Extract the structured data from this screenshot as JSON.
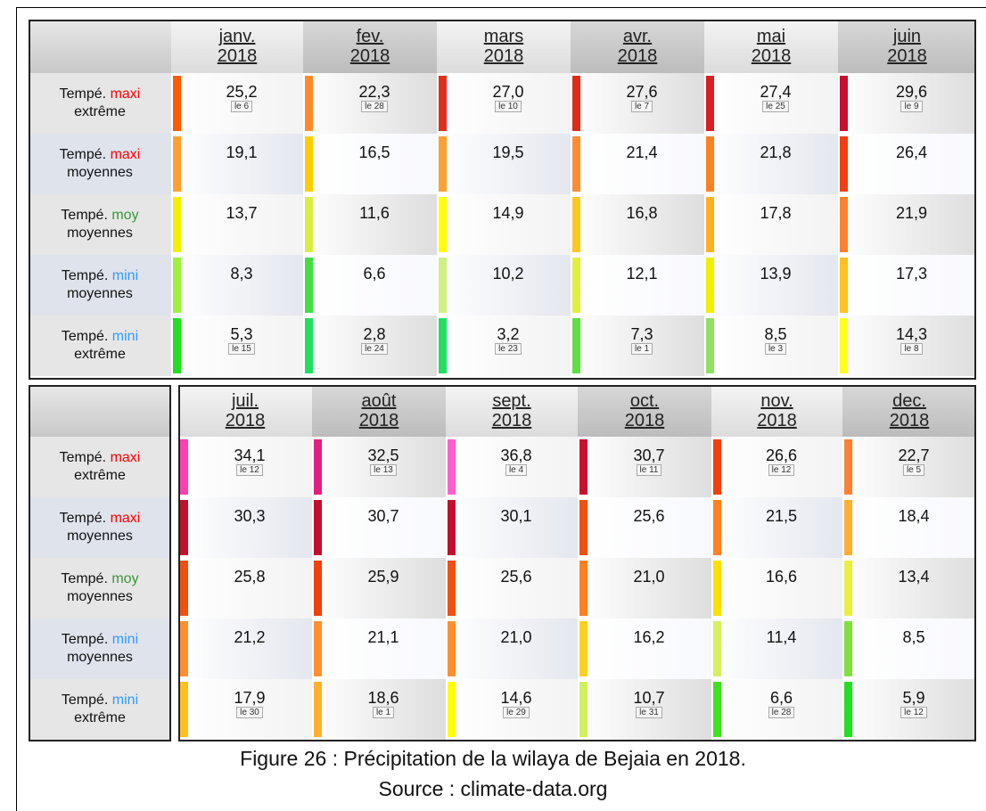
{
  "tables": [
    {
      "months": [
        {
          "month": "janv.",
          "year": "2018"
        },
        {
          "month": "fev.",
          "year": "2018"
        },
        {
          "month": "mars",
          "year": "2018"
        },
        {
          "month": "avr.",
          "year": "2018"
        },
        {
          "month": "mai",
          "year": "2018"
        },
        {
          "month": "juin",
          "year": "2018"
        }
      ],
      "rows": [
        {
          "label": {
            "prefix": "Tempé.",
            "key": "maxi",
            "key_color": "#ff0000",
            "suffix": "extrême"
          },
          "cells": [
            {
              "value": "25,2",
              "day": "le 6",
              "color": "#ff5a00"
            },
            {
              "value": "22,3",
              "day": "le 28",
              "color": "#ff8a2a"
            },
            {
              "value": "27,0",
              "day": "le 10",
              "color": "#e0301a"
            },
            {
              "value": "27,6",
              "day": "le 7",
              "color": "#e02a1a"
            },
            {
              "value": "27,4",
              "day": "le 25",
              "color": "#d82020"
            },
            {
              "value": "29,6",
              "day": "le 9",
              "color": "#c8102e"
            }
          ]
        },
        {
          "label": {
            "prefix": "Tempé.",
            "key": "maxi",
            "key_color": "#ff0000",
            "suffix": "moyennes"
          },
          "cells": [
            {
              "value": "19,1",
              "color": "#ffa030"
            },
            {
              "value": "16,5",
              "color": "#ffcc00"
            },
            {
              "value": "19,5",
              "color": "#ffa030"
            },
            {
              "value": "21,4",
              "color": "#ff8c30"
            },
            {
              "value": "21,8",
              "color": "#ff8020"
            },
            {
              "value": "26,4",
              "color": "#f04010"
            }
          ]
        },
        {
          "label": {
            "prefix": "Tempé.",
            "key": "moy",
            "key_color": "#339933",
            "suffix": "moyennes"
          },
          "cells": [
            {
              "value": "13,7",
              "color": "#f0f000"
            },
            {
              "value": "11,6",
              "color": "#d8f040"
            },
            {
              "value": "14,9",
              "color": "#ffff00"
            },
            {
              "value": "16,8",
              "color": "#ffc820"
            },
            {
              "value": "17,8",
              "color": "#ffb020"
            },
            {
              "value": "21,9",
              "color": "#ff8030"
            }
          ]
        },
        {
          "label": {
            "prefix": "Tempé.",
            "key": "mini",
            "key_color": "#3399ff",
            "suffix": "moyennes"
          },
          "cells": [
            {
              "value": "8,3",
              "color": "#a0f040"
            },
            {
              "value": "6,6",
              "color": "#40e040"
            },
            {
              "value": "10,2",
              "color": "#d0f080"
            },
            {
              "value": "12,1",
              "color": "#e0f040"
            },
            {
              "value": "13,9",
              "color": "#f0f000"
            },
            {
              "value": "17,3",
              "color": "#ffc020"
            }
          ]
        },
        {
          "label": {
            "prefix": "Tempé.",
            "key": "mini",
            "key_color": "#3399ff",
            "suffix": "extrême"
          },
          "cells": [
            {
              "value": "5,3",
              "day": "le 15",
              "color": "#20e020"
            },
            {
              "value": "2,8",
              "day": "le 24",
              "color": "#20e060"
            },
            {
              "value": "3,2",
              "day": "le 23",
              "color": "#20e060"
            },
            {
              "value": "7,3",
              "day": "le 1",
              "color": "#60e040"
            },
            {
              "value": "8,5",
              "day": "le 3",
              "color": "#90e060"
            },
            {
              "value": "14,3",
              "day": "le 8",
              "color": "#ffff20"
            }
          ]
        }
      ]
    },
    {
      "months": [
        {
          "month": "juil.",
          "year": "2018"
        },
        {
          "month": "août",
          "year": "2018"
        },
        {
          "month": "sept.",
          "year": "2018"
        },
        {
          "month": "oct.",
          "year": "2018"
        },
        {
          "month": "nov.",
          "year": "2018"
        },
        {
          "month": "dec.",
          "year": "2018"
        }
      ],
      "rows": [
        {
          "label": {
            "prefix": "Tempé.",
            "key": "maxi",
            "key_color": "#ff0000",
            "suffix": "extrême"
          },
          "cells": [
            {
              "value": "34,1",
              "day": "le 12",
              "color": "#ff40b0"
            },
            {
              "value": "32,5",
              "day": "le 13",
              "color": "#e02080"
            },
            {
              "value": "36,8",
              "day": "le 4",
              "color": "#ff60d0"
            },
            {
              "value": "30,7",
              "day": "le 11",
              "color": "#c8102e"
            },
            {
              "value": "26,6",
              "day": "le 12",
              "color": "#f04010"
            },
            {
              "value": "22,7",
              "day": "le 5",
              "color": "#ff8030"
            }
          ]
        },
        {
          "label": {
            "prefix": "Tempé.",
            "key": "maxi",
            "key_color": "#ff0000",
            "suffix": "moyennes"
          },
          "cells": [
            {
              "value": "30,3",
              "color": "#c0102e"
            },
            {
              "value": "30,7",
              "color": "#c0102e"
            },
            {
              "value": "30,1",
              "color": "#c0102e"
            },
            {
              "value": "25,6",
              "color": "#f05010"
            },
            {
              "value": "21,5",
              "color": "#ff8020"
            },
            {
              "value": "18,4",
              "color": "#ffb030"
            }
          ]
        },
        {
          "label": {
            "prefix": "Tempé.",
            "key": "moy",
            "key_color": "#339933",
            "suffix": "moyennes"
          },
          "cells": [
            {
              "value": "25,8",
              "color": "#f05010"
            },
            {
              "value": "25,9",
              "color": "#f04010"
            },
            {
              "value": "25,6",
              "color": "#f05010"
            },
            {
              "value": "21,0",
              "color": "#ff8020"
            },
            {
              "value": "16,6",
              "color": "#ffe000"
            },
            {
              "value": "13,4",
              "color": "#e8f040"
            }
          ]
        },
        {
          "label": {
            "prefix": "Tempé.",
            "key": "mini",
            "key_color": "#3399ff",
            "suffix": "moyennes"
          },
          "cells": [
            {
              "value": "21,2",
              "color": "#ff9030"
            },
            {
              "value": "21,1",
              "color": "#ff9030"
            },
            {
              "value": "21,0",
              "color": "#ff9030"
            },
            {
              "value": "16,2",
              "color": "#ffd020"
            },
            {
              "value": "11,4",
              "color": "#d8f060"
            },
            {
              "value": "8,5",
              "color": "#80e040"
            }
          ]
        },
        {
          "label": {
            "prefix": "Tempé.",
            "key": "mini",
            "key_color": "#3399ff",
            "suffix": "extrême"
          },
          "cells": [
            {
              "value": "17,9",
              "day": "le 30",
              "color": "#ffc020"
            },
            {
              "value": "18,6",
              "day": "le 1",
              "color": "#ffb030"
            },
            {
              "value": "14,6",
              "day": "le 29",
              "color": "#ffff00"
            },
            {
              "value": "10,7",
              "day": "le 31",
              "color": "#d0f060"
            },
            {
              "value": "6,6",
              "day": "le 28",
              "color": "#40e020"
            },
            {
              "value": "5,9",
              "day": "le 12",
              "color": "#20e020"
            }
          ]
        }
      ]
    }
  ],
  "caption": {
    "line1": "Figure 26 : Précipitation de la wilaya de Bejaia en 2018.",
    "line2": "Source : climate-data.org"
  }
}
